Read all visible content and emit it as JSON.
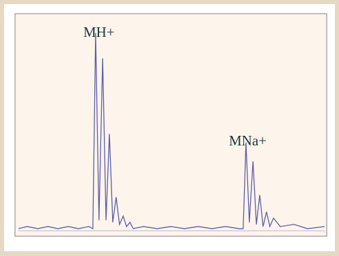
{
  "chart_data": {
    "type": "line",
    "annotations": [
      "MH+",
      "MNa+"
    ],
    "x": [
      0,
      2.9,
      6.3,
      9.6,
      12.9,
      16.3,
      19.6,
      23.0,
      24.3,
      25.2,
      26.3,
      27.5,
      28.6,
      29.7,
      30.8,
      31.9,
      33.0,
      34.2,
      35.3,
      36.4,
      37.5,
      40.8,
      45.3,
      49.8,
      54.2,
      58.7,
      63.2,
      67.6,
      72.1,
      73.4,
      74.3,
      75.4,
      76.6,
      77.7,
      78.8,
      79.9,
      81.0,
      82.1,
      83.3,
      85.5,
      90.0,
      94.4,
      100
    ],
    "series": [
      {
        "color": "#5c5ca8",
        "values": [
          1,
          2,
          1,
          2,
          1,
          2,
          1,
          2,
          1,
          94,
          5,
          82,
          5,
          46,
          4,
          16,
          3,
          7,
          2,
          4,
          1,
          2,
          1,
          2,
          1,
          2,
          1,
          2,
          1,
          1,
          42,
          4,
          33,
          3,
          17,
          2,
          9,
          2,
          6,
          2,
          3,
          1,
          2
        ]
      }
    ],
    "xlim": [
      0,
      100
    ],
    "ylim": [
      0,
      100
    ]
  }
}
